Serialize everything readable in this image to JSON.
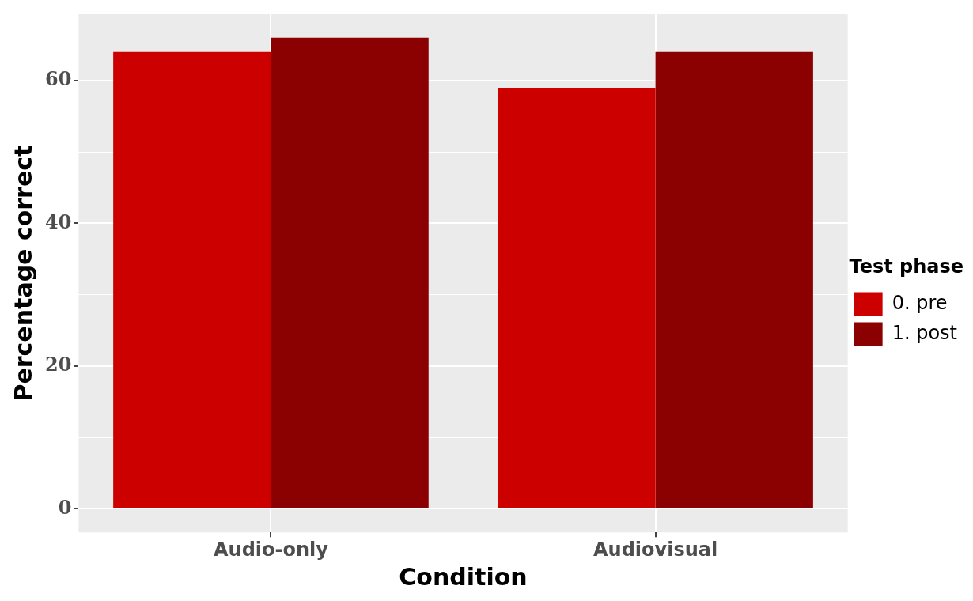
{
  "chart_data": {
    "type": "bar",
    "xlabel": "Condition",
    "ylabel": "Percentage correct",
    "legend_title": "Test phase",
    "legend": "right",
    "categories": [
      "Audio-only",
      "Audiovisual"
    ],
    "series": [
      {
        "name": "0. pre",
        "color": "#cd0000",
        "values": [
          64,
          59
        ]
      },
      {
        "name": "1. post",
        "color": "#8b0000",
        "values": [
          66,
          64
        ]
      }
    ],
    "ylim": [
      -3.3,
      69.3
    ],
    "yticks": [
      0,
      {
        "value": 10,
        "label": null
      },
      20,
      {
        "value": 30,
        "label": null
      },
      40,
      {
        "value": 50,
        "label": null
      },
      60
    ],
    "grid": true
  }
}
